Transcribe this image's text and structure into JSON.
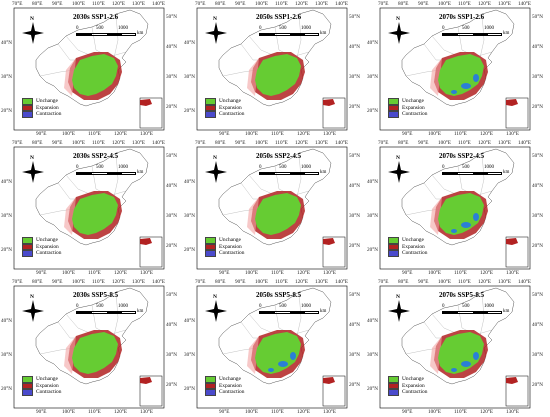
{
  "colors": {
    "unchange": "#66cc33",
    "expansion": "#b22222",
    "contraction": "#4a4acc",
    "contraction_blue": "#2b7fd6"
  },
  "legend": {
    "unchange": "Unchange",
    "expansion": "Expansion",
    "contraction": "Contraction"
  },
  "scale": {
    "label_0": "0",
    "label_500": "500",
    "label_1000": "1000",
    "unit": "km"
  },
  "compass_label": "N",
  "top_ticks": [
    "70°E",
    "80°E",
    "90°E",
    "100°E",
    "110°E",
    "120°E",
    "130°E",
    "140°E"
  ],
  "bottom_ticks": [
    "90°E",
    "100°E",
    "110°E",
    "120°E",
    "130°E"
  ],
  "bottom_ticks_right": [
    "90°E",
    "100°E",
    "110°E",
    "120°E",
    "130°E"
  ],
  "left_ticks": [
    "40°N",
    "30°N",
    "20°N"
  ],
  "right_ticks": [
    "50°N",
    "40°N",
    "30°N",
    "20°N"
  ],
  "panels": [
    {
      "title": "2030s SSP1-2.6",
      "blue": false
    },
    {
      "title": "2050s SSP1-2.6",
      "blue": false
    },
    {
      "title": "2070s SSP1-2.6",
      "blue": true
    },
    {
      "title": "2030s SSP2-4.5",
      "blue": false
    },
    {
      "title": "2050s SSP2-4.5",
      "blue": false
    },
    {
      "title": "2070s SSP2-4.5",
      "blue": true
    },
    {
      "title": "2030s SSP5-8.5",
      "blue": false
    },
    {
      "title": "2050s SSP5-8.5",
      "blue": true
    },
    {
      "title": "2070s SSP5-8.5",
      "blue": true
    }
  ]
}
